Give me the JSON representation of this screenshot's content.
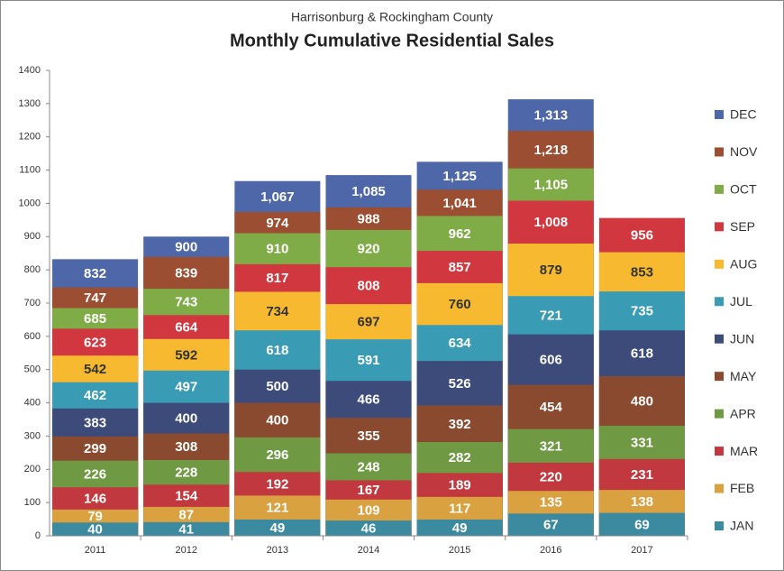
{
  "chart_data": {
    "type": "overlapping-bar",
    "subtitle": "Harrisonburg & Rockingham County",
    "title": "Monthly Cumulative Residential Sales",
    "categories": [
      "2011",
      "2012",
      "2013",
      "2014",
      "2015",
      "2016",
      "2017"
    ],
    "ylim": [
      0,
      1400
    ],
    "yticks": [
      0,
      100,
      200,
      300,
      400,
      500,
      600,
      700,
      800,
      900,
      1000,
      1100,
      1200,
      1300,
      1400
    ],
    "grid": false,
    "legend": "right",
    "series": [
      {
        "name": "JAN",
        "color": "#3b8aa0",
        "label_color": "#ffffff",
        "values": [
          40,
          41,
          49,
          46,
          49,
          67,
          69
        ]
      },
      {
        "name": "FEB",
        "color": "#d9a13f",
        "label_color": "#ffffff",
        "values": [
          79,
          87,
          121,
          109,
          117,
          135,
          138
        ]
      },
      {
        "name": "MAR",
        "color": "#c1393f",
        "label_color": "#ffffff",
        "values": [
          146,
          154,
          192,
          167,
          189,
          220,
          231
        ]
      },
      {
        "name": "APR",
        "color": "#6f9a43",
        "label_color": "#ffffff",
        "values": [
          226,
          228,
          296,
          248,
          282,
          321,
          331
        ]
      },
      {
        "name": "MAY",
        "color": "#8a4a30",
        "label_color": "#ffffff",
        "values": [
          299,
          308,
          400,
          355,
          392,
          454,
          480
        ]
      },
      {
        "name": "JUN",
        "color": "#3d4b7b",
        "label_color": "#ffffff",
        "values": [
          383,
          400,
          500,
          466,
          526,
          606,
          618
        ]
      },
      {
        "name": "JUL",
        "color": "#3a9bb4",
        "label_color": "#ffffff",
        "values": [
          462,
          497,
          618,
          591,
          634,
          721,
          735
        ]
      },
      {
        "name": "AUG",
        "color": "#f6b92f",
        "label_color": "#333333",
        "values": [
          542,
          592,
          734,
          697,
          760,
          879,
          853
        ]
      },
      {
        "name": "SEP",
        "color": "#d0373f",
        "label_color": "#ffffff",
        "values": [
          623,
          664,
          817,
          808,
          857,
          1008,
          956
        ],
        "value_labels": [
          "623",
          "664",
          "817",
          "808",
          "857",
          "1,008",
          "956"
        ]
      },
      {
        "name": "OCT",
        "color": "#80ac48",
        "label_color": "#ffffff",
        "values": [
          685,
          743,
          910,
          920,
          962,
          1105,
          null
        ],
        "value_labels": [
          "685",
          "743",
          "910",
          "920",
          "962",
          "1,105",
          null
        ]
      },
      {
        "name": "NOV",
        "color": "#9b4e31",
        "label_color": "#ffffff",
        "values": [
          747,
          839,
          974,
          988,
          1041,
          1218,
          null
        ],
        "value_labels": [
          "747",
          "839",
          "974",
          "988",
          "1,041",
          "1,218",
          null
        ]
      },
      {
        "name": "DEC",
        "color": "#4e67a8",
        "label_color": "#ffffff",
        "values": [
          832,
          900,
          1067,
          1085,
          1125,
          1313,
          null
        ],
        "value_labels": [
          "832",
          "900",
          "1,067",
          "1,085",
          "1,125",
          "1,313",
          null
        ]
      }
    ]
  }
}
